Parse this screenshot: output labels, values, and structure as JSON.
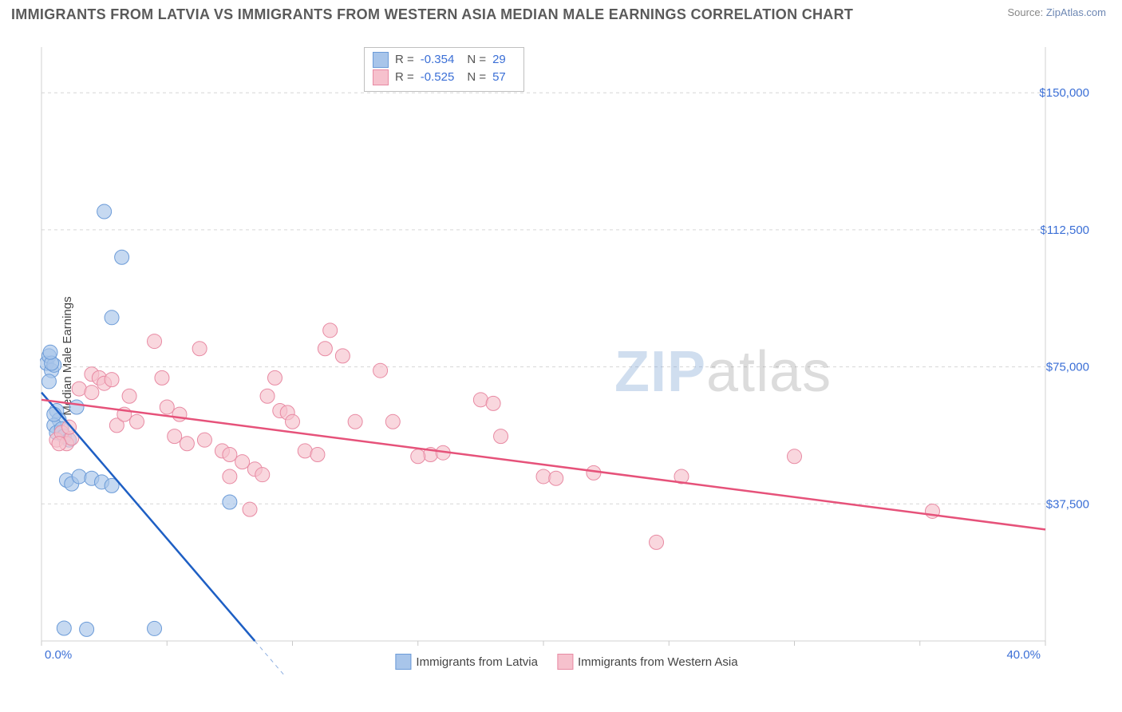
{
  "title": "IMMIGRANTS FROM LATVIA VS IMMIGRANTS FROM WESTERN ASIA MEDIAN MALE EARNINGS CORRELATION CHART",
  "source_prefix": "Source: ",
  "source_name": "ZipAtlas.com",
  "y_axis_label": "Median Male Earnings",
  "watermark_a": "ZIP",
  "watermark_b": "atlas",
  "chart": {
    "type": "scatter-regression",
    "background_color": "#ffffff",
    "grid_color": "#d6d6d6",
    "axis_color": "#d0d0d0",
    "x": {
      "min": 0,
      "max": 40,
      "label_min": "0.0%",
      "label_max": "40.0%",
      "tick_step": 5,
      "label_color": "#3b6fd6"
    },
    "y": {
      "min": 0,
      "max": 162500,
      "grid_vals": [
        37500,
        75000,
        112500,
        150000
      ],
      "labels": [
        "$37,500",
        "$75,000",
        "$112,500",
        "$150,000"
      ],
      "label_color": "#3b6fd6"
    },
    "series": [
      {
        "name": "Immigrants from Latvia",
        "color_fill": "#a8c5ea",
        "color_stroke": "#6b9bd8",
        "line_color": "#1e5fc4",
        "R": "-0.354",
        "N": "29",
        "reg_x1": 0,
        "reg_y1": 68000,
        "reg_x2": 8.5,
        "reg_y2": 0,
        "dash_x1": 8.5,
        "dash_y1": 0,
        "dash_x2": 11.5,
        "dash_y2": -24000,
        "points": [
          [
            0.2,
            76000
          ],
          [
            0.3,
            78000
          ],
          [
            0.4,
            74000
          ],
          [
            0.5,
            75500
          ],
          [
            0.3,
            71000
          ],
          [
            0.6,
            63000
          ],
          [
            0.7,
            60500
          ],
          [
            0.5,
            59000
          ],
          [
            0.6,
            57000
          ],
          [
            0.8,
            58000
          ],
          [
            0.9,
            56000
          ],
          [
            1.1,
            55000
          ],
          [
            0.4,
            76000
          ],
          [
            1.0,
            44000
          ],
          [
            1.2,
            43000
          ],
          [
            1.5,
            45000
          ],
          [
            2.0,
            44500
          ],
          [
            2.4,
            43500
          ],
          [
            2.8,
            42500
          ],
          [
            2.5,
            117500
          ],
          [
            3.2,
            105000
          ],
          [
            2.8,
            88500
          ],
          [
            1.4,
            64000
          ],
          [
            0.9,
            3500
          ],
          [
            1.8,
            3200
          ],
          [
            4.5,
            3400
          ],
          [
            7.5,
            38000
          ],
          [
            0.35,
            79000
          ],
          [
            0.5,
            62000
          ]
        ]
      },
      {
        "name": "Immigrants from Western Asia",
        "color_fill": "#f6c1cd",
        "color_stroke": "#e88aa3",
        "line_color": "#e6527a",
        "R": "-0.525",
        "N": "57",
        "reg_x1": 0,
        "reg_y1": 66000,
        "reg_x2": 40,
        "reg_y2": 30500,
        "points": [
          [
            0.6,
            55000
          ],
          [
            0.8,
            57000
          ],
          [
            1.0,
            54000
          ],
          [
            1.2,
            55500
          ],
          [
            1.1,
            58500
          ],
          [
            0.7,
            54000
          ],
          [
            1.5,
            69000
          ],
          [
            2.0,
            73000
          ],
          [
            2.3,
            72000
          ],
          [
            2.5,
            70500
          ],
          [
            2.8,
            71500
          ],
          [
            2.0,
            68000
          ],
          [
            3.0,
            59000
          ],
          [
            3.3,
            62000
          ],
          [
            3.5,
            67000
          ],
          [
            3.8,
            60000
          ],
          [
            4.5,
            82000
          ],
          [
            4.8,
            72000
          ],
          [
            5.0,
            64000
          ],
          [
            5.5,
            62000
          ],
          [
            5.3,
            56000
          ],
          [
            5.8,
            54000
          ],
          [
            6.5,
            55000
          ],
          [
            6.3,
            80000
          ],
          [
            7.2,
            52000
          ],
          [
            7.5,
            51000
          ],
          [
            7.5,
            45000
          ],
          [
            8.0,
            49000
          ],
          [
            8.5,
            47000
          ],
          [
            8.3,
            36000
          ],
          [
            8.8,
            45500
          ],
          [
            9.0,
            67000
          ],
          [
            9.3,
            72000
          ],
          [
            9.5,
            63000
          ],
          [
            9.8,
            62500
          ],
          [
            10.0,
            60000
          ],
          [
            10.5,
            52000
          ],
          [
            11.0,
            51000
          ],
          [
            11.3,
            80000
          ],
          [
            11.5,
            85000
          ],
          [
            12.0,
            78000
          ],
          [
            12.5,
            60000
          ],
          [
            13.5,
            74000
          ],
          [
            14.0,
            60000
          ],
          [
            15.5,
            51000
          ],
          [
            16.0,
            51500
          ],
          [
            17.5,
            66000
          ],
          [
            18.0,
            65000
          ],
          [
            18.3,
            56000
          ],
          [
            20.0,
            45000
          ],
          [
            20.5,
            44500
          ],
          [
            22.0,
            46000
          ],
          [
            24.5,
            27000
          ],
          [
            25.5,
            45000
          ],
          [
            30.0,
            50500
          ],
          [
            35.5,
            35500
          ],
          [
            15.0,
            50500
          ]
        ]
      }
    ]
  },
  "legend_labels": {
    "R_prefix": "R = ",
    "N_prefix": "N = "
  }
}
